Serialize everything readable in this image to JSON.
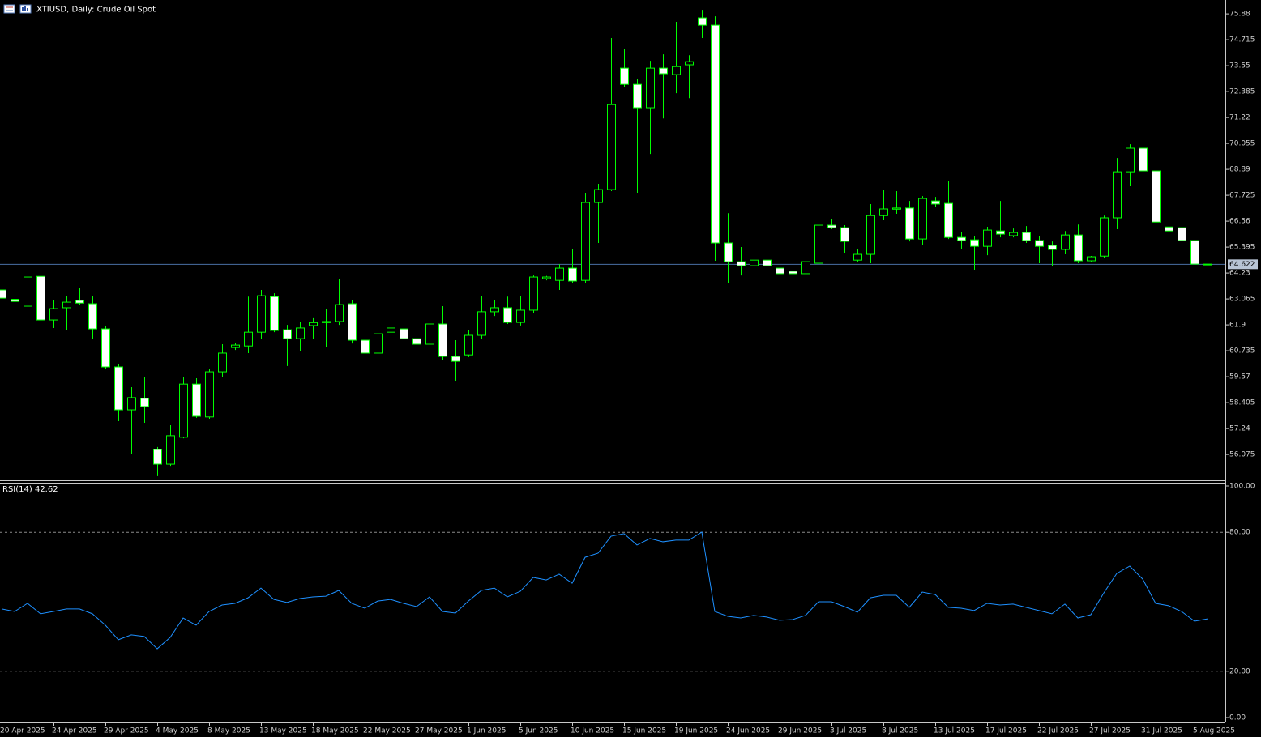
{
  "chart_data": [
    {
      "type": "candlestick",
      "title": "XTIUSD, Daily:  Crude Oil Spot",
      "categories": [
        "20 Apr 2025",
        null,
        null,
        null,
        "24 Apr 2025",
        null,
        null,
        null,
        "29 Apr 2025",
        null,
        null,
        null,
        "4 May 2025",
        null,
        null,
        null,
        "8 May 2025",
        null,
        null,
        null,
        "13 May 2025",
        null,
        null,
        null,
        "18 May 2025",
        null,
        null,
        null,
        "22 May 2025",
        null,
        null,
        null,
        "27 May 2025",
        null,
        null,
        null,
        "1 Jun 2025",
        null,
        null,
        null,
        "5 Jun 2025",
        null,
        null,
        null,
        "10 Jun 2025",
        null,
        null,
        null,
        "15 Jun 2025",
        null,
        null,
        null,
        "19 Jun 2025",
        null,
        null,
        null,
        "24 Jun 2025",
        null,
        null,
        null,
        "29 Jun 2025",
        null,
        null,
        null,
        "3 Jul 2025",
        null,
        null,
        null,
        "8 Jul 2025",
        null,
        null,
        null,
        "13 Jul 2025",
        null,
        null,
        null,
        "17 Jul 2025",
        null,
        null,
        null,
        "22 Jul 2025",
        null,
        null,
        null,
        "27 Jul 2025",
        null,
        null,
        null,
        "31 Jul 2025",
        null,
        null,
        null,
        "5 Aug 2025",
        null
      ],
      "open": [
        63.47,
        63.05,
        62.74,
        64.08,
        62.12,
        62.67,
        63.0,
        62.85,
        61.72,
        60.01,
        58.08,
        58.6,
        56.3,
        55.64,
        56.85,
        59.24,
        57.76,
        59.79,
        60.88,
        60.95,
        61.57,
        63.17,
        61.68,
        61.28,
        61.87,
        62.0,
        62.05,
        62.85,
        61.21,
        60.63,
        61.57,
        61.72,
        61.28,
        61.03,
        61.94,
        60.48,
        60.55,
        61.43,
        62.49,
        62.67,
        62.01,
        62.56,
        63.98,
        63.9,
        64.45,
        63.9,
        67.4,
        67.98,
        73.44,
        72.71,
        71.66,
        73.44,
        73.15,
        73.59,
        75.7,
        75.37,
        65.58,
        64.74,
        64.56,
        64.81,
        64.45,
        64.31,
        64.2,
        64.67,
        66.38,
        66.27,
        64.81,
        65.07,
        66.81,
        67.1,
        67.15,
        65.76,
        67.47,
        67.36,
        65.83,
        65.72,
        65.43,
        66.12,
        65.91,
        66.05,
        65.69,
        65.47,
        65.29,
        65.94,
        64.78,
        64.99,
        66.71,
        68.78,
        69.84,
        68.82,
        66.3,
        66.27,
        65.69,
        64.63
      ],
      "high": [
        63.6,
        63.3,
        64.3,
        64.67,
        63.03,
        63.21,
        63.55,
        63.2,
        61.83,
        60.12,
        59.1,
        59.57,
        56.41,
        57.39,
        59.54,
        59.5,
        59.94,
        61.03,
        61.1,
        63.17,
        63.47,
        63.32,
        61.9,
        62.05,
        62.2,
        62.63,
        63.98,
        63.03,
        61.57,
        61.65,
        61.94,
        61.83,
        61.57,
        62.16,
        62.74,
        61.21,
        61.65,
        63.21,
        63.03,
        63.17,
        63.21,
        64.12,
        64.1,
        64.63,
        65.29,
        67.84,
        68.24,
        74.79,
        74.31,
        72.97,
        73.77,
        74.06,
        75.52,
        74.02,
        76.06,
        75.77,
        66.92,
        65.4,
        65.87,
        65.58,
        64.56,
        65.22,
        65.22,
        66.74,
        66.67,
        66.38,
        65.32,
        67.33,
        67.95,
        67.91,
        67.47,
        67.69,
        67.65,
        68.35,
        66.09,
        65.87,
        66.31,
        67.47,
        66.23,
        66.34,
        65.87,
        65.65,
        66.12,
        66.41,
        65.0,
        66.81,
        69.4,
        70.02,
        69.91,
        68.93,
        66.45,
        67.11,
        65.8,
        64.67
      ],
      "low": [
        62.9,
        61.65,
        62.5,
        61.39,
        61.76,
        61.65,
        62.8,
        61.28,
        59.94,
        57.57,
        56.1,
        57.5,
        55.1,
        55.53,
        56.8,
        57.72,
        57.68,
        59.54,
        60.77,
        60.63,
        61.28,
        61.57,
        60.05,
        60.74,
        61.28,
        60.92,
        61.9,
        61.06,
        60.12,
        59.86,
        61.43,
        61.21,
        60.08,
        60.3,
        60.34,
        59.39,
        60.45,
        61.28,
        62.3,
        61.94,
        61.87,
        62.45,
        63.9,
        63.47,
        63.76,
        63.76,
        65.58,
        67.91,
        72.57,
        67.84,
        69.58,
        71.18,
        72.31,
        72.09,
        74.79,
        64.78,
        63.76,
        64.12,
        64.27,
        64.2,
        64.12,
        63.94,
        64.12,
        64.56,
        66.2,
        65.14,
        64.74,
        64.67,
        66.6,
        66.89,
        65.65,
        65.5,
        67.22,
        65.76,
        65.32,
        64.38,
        65.03,
        65.83,
        65.83,
        65.58,
        64.67,
        64.56,
        65.07,
        64.67,
        64.74,
        64.92,
        66.2,
        68.13,
        68.13,
        66.45,
        65.91,
        64.85,
        64.49,
        64.6
      ],
      "close": [
        63.1,
        62.95,
        64.05,
        62.12,
        62.63,
        62.92,
        62.88,
        61.72,
        60.01,
        58.08,
        58.63,
        58.23,
        55.64,
        56.92,
        59.24,
        57.79,
        59.79,
        60.63,
        60.99,
        61.57,
        63.21,
        61.65,
        61.28,
        61.76,
        62.0,
        62.05,
        62.81,
        61.21,
        60.63,
        61.5,
        61.76,
        61.28,
        61.03,
        61.94,
        60.48,
        60.26,
        61.43,
        62.49,
        62.67,
        62.01,
        62.56,
        64.05,
        64.05,
        64.45,
        63.87,
        67.4,
        67.98,
        71.8,
        72.71,
        71.66,
        73.44,
        73.19,
        73.51,
        73.73,
        75.37,
        65.58,
        64.74,
        64.56,
        64.81,
        64.56,
        64.2,
        64.2,
        64.74,
        66.38,
        66.27,
        65.65,
        65.07,
        66.81,
        67.11,
        67.15,
        65.76,
        67.58,
        67.33,
        65.83,
        65.69,
        65.43,
        66.16,
        65.98,
        66.05,
        65.69,
        65.43,
        65.29,
        65.94,
        64.78,
        64.96,
        66.71,
        68.78,
        69.84,
        68.82,
        66.52,
        66.12,
        65.69,
        64.63,
        64.62
      ],
      "last_price": 64.622,
      "last_price_color": "#4a6fa5",
      "wick_color": "#00ff00",
      "bull_fill": "#000000",
      "bear_fill": "#ffffff",
      "ylim": [
        54.95,
        76.43
      ],
      "yticks": [
        56.075,
        57.24,
        58.405,
        59.57,
        60.735,
        61.9,
        63.065,
        64.23,
        65.395,
        66.56,
        67.725,
        68.89,
        70.055,
        71.22,
        72.385,
        73.55,
        74.715,
        75.88
      ]
    },
    {
      "type": "line",
      "title": "RSI(14) 42.62",
      "color": "#1e90ff",
      "values": [
        46.9,
        45.8,
        49.3,
        44.8,
        45.8,
        46.9,
        46.9,
        44.8,
        39.9,
        33.6,
        35.7,
        35.0,
        29.7,
        34.6,
        43.0,
        39.9,
        45.8,
        48.6,
        49.3,
        51.7,
        55.9,
        51.0,
        49.7,
        51.4,
        52.1,
        52.4,
        54.9,
        49.3,
        47.2,
        50.3,
        51.0,
        49.3,
        47.9,
        52.1,
        45.8,
        45.1,
        50.3,
        54.9,
        55.9,
        52.1,
        54.5,
        60.5,
        59.4,
        61.9,
        58.0,
        69.2,
        71.0,
        78.3,
        79.4,
        74.5,
        77.3,
        75.9,
        76.6,
        76.6,
        80.1,
        45.8,
        43.7,
        43.0,
        44.1,
        43.4,
        42.0,
        42.3,
        44.1,
        50.0,
        50.0,
        47.9,
        45.5,
        51.7,
        52.8,
        52.8,
        47.6,
        54.2,
        53.1,
        47.6,
        47.2,
        46.2,
        49.3,
        48.6,
        49.0,
        47.6,
        46.2,
        44.8,
        49.0,
        43.0,
        44.4,
        53.8,
        62.2,
        65.4,
        59.8,
        49.3,
        48.3,
        45.8,
        41.6,
        42.62
      ],
      "levels": [
        80,
        20
      ],
      "ylim": [
        -2.1,
        101.4
      ],
      "yticks": [
        {
          "value": 100,
          "label": "100.00"
        },
        {
          "value": 80,
          "label": "80.00"
        },
        {
          "value": 20,
          "label": "20.00"
        },
        {
          "value": 0,
          "label": "0.00"
        }
      ]
    }
  ]
}
